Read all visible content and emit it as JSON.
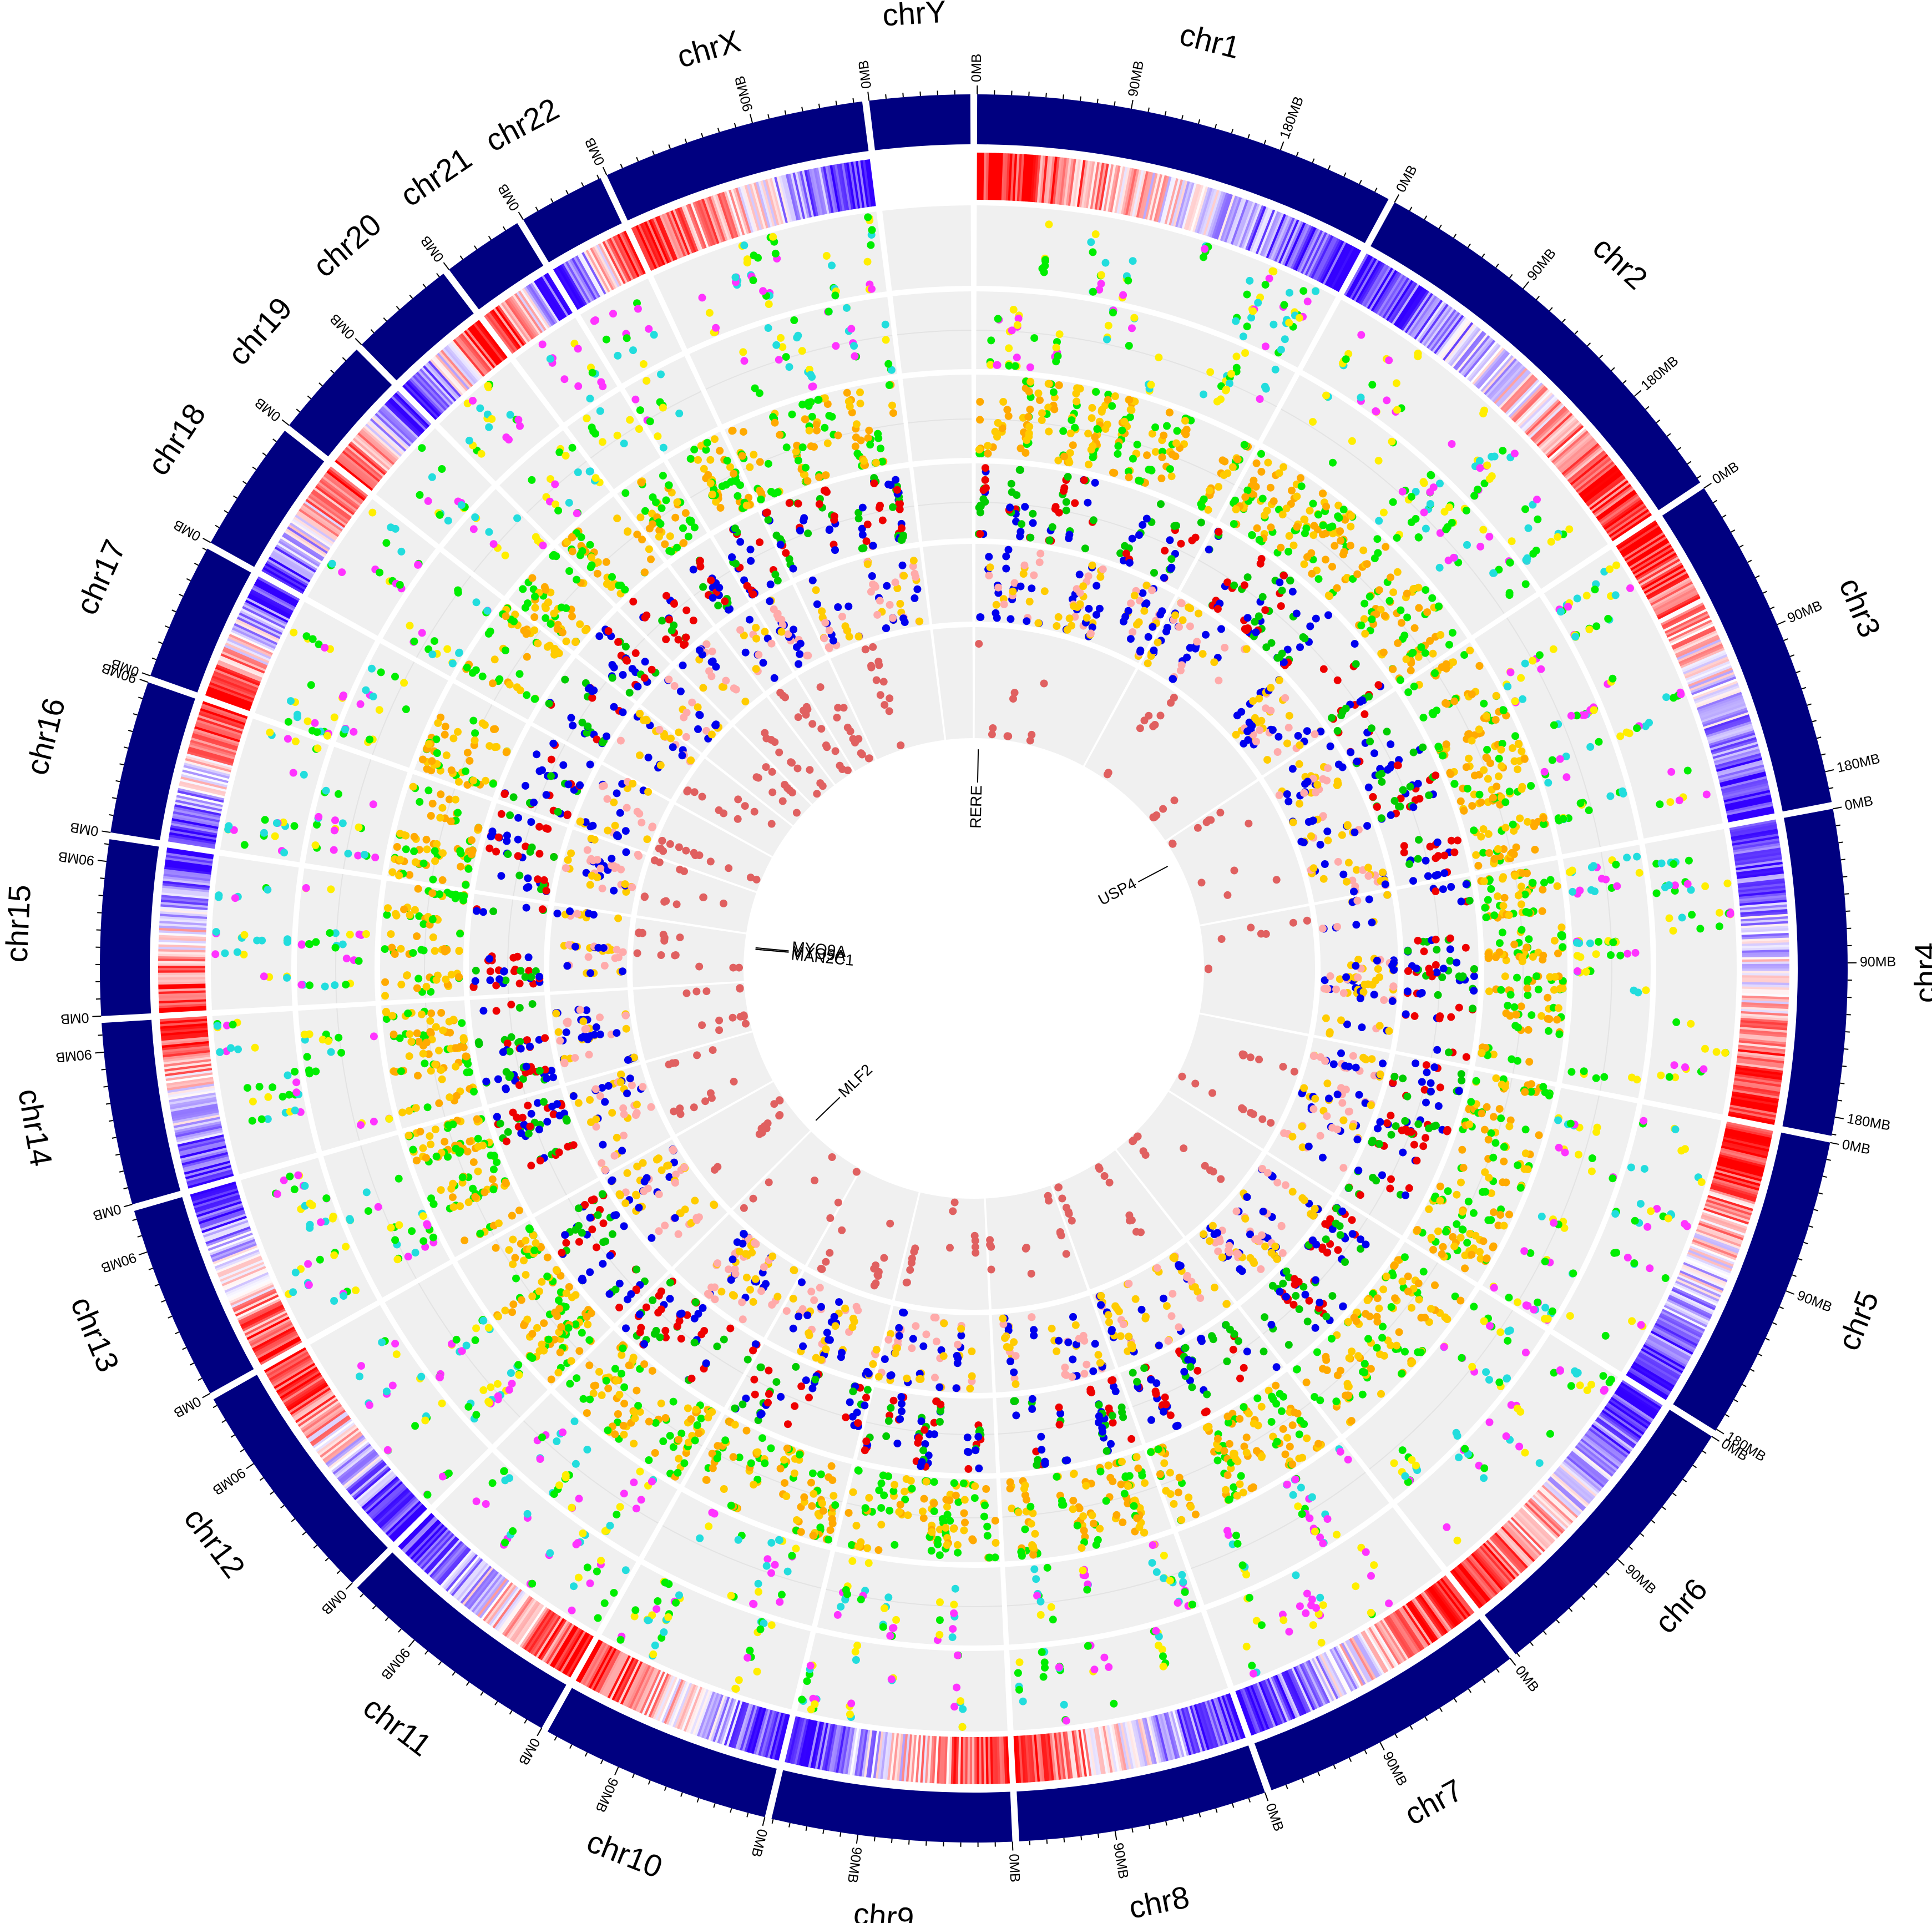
{
  "chart_data": {
    "type": "circos",
    "genome": "hg19",
    "chromosomes": [
      {
        "name": "chr1",
        "size_mb": 249
      },
      {
        "name": "chr2",
        "size_mb": 243
      },
      {
        "name": "chr3",
        "size_mb": 198
      },
      {
        "name": "chr4",
        "size_mb": 191
      },
      {
        "name": "chr5",
        "size_mb": 181
      },
      {
        "name": "chr6",
        "size_mb": 171
      },
      {
        "name": "chr7",
        "size_mb": 159
      },
      {
        "name": "chr8",
        "size_mb": 146
      },
      {
        "name": "chr9",
        "size_mb": 141
      },
      {
        "name": "chr10",
        "size_mb": 136
      },
      {
        "name": "chr11",
        "size_mb": 135
      },
      {
        "name": "chr12",
        "size_mb": 134
      },
      {
        "name": "chr13",
        "size_mb": 115
      },
      {
        "name": "chr14",
        "size_mb": 107
      },
      {
        "name": "chr15",
        "size_mb": 103
      },
      {
        "name": "chr16",
        "size_mb": 90
      },
      {
        "name": "chr17",
        "size_mb": 81
      },
      {
        "name": "chr18",
        "size_mb": 78
      },
      {
        "name": "chr19",
        "size_mb": 59
      },
      {
        "name": "chr20",
        "size_mb": 63
      },
      {
        "name": "chr21",
        "size_mb": 48
      },
      {
        "name": "chr22",
        "size_mb": 51
      },
      {
        "name": "chrX",
        "size_mb": 155
      },
      {
        "name": "chrY",
        "size_mb": 59
      }
    ],
    "tick_interval_mb": 90,
    "tick_labels": [
      "0MB",
      "90MB",
      "180MB"
    ],
    "gene_labels": [
      {
        "name": "RERE",
        "chr": "chr1",
        "pos_mb": 8.5
      },
      {
        "name": "USP4",
        "chr": "chr3",
        "pos_mb": 49.3
      },
      {
        "name": "MLF2",
        "chr": "chr12",
        "pos_mb": 6.9
      },
      {
        "name": "MAN2C1",
        "chr": "chr15",
        "pos_mb": 75.6
      },
      {
        "name": "MYO9A",
        "chr": "chr15",
        "pos_mb": 72.1
      },
      {
        "name": "MYO9A",
        "chr": "chr15",
        "pos_mb": 72.3
      }
    ],
    "tracks": [
      {
        "name": "density-heatmap",
        "type": "heatmap",
        "colors": [
          "#3300ff",
          "#ffffff",
          "#ff0000"
        ]
      },
      {
        "name": "track-1",
        "type": "scatter",
        "colors": [
          "#00ee00",
          "#ffee00",
          "#ff33ff",
          "#22dddd"
        ]
      },
      {
        "name": "track-2",
        "type": "scatter",
        "colors": [
          "#00ee00",
          "#ffee00",
          "#ff33ff",
          "#22dddd"
        ]
      },
      {
        "name": "track-3",
        "type": "scatter",
        "colors": [
          "#ffcc00",
          "#ffaa00",
          "#00ee00"
        ]
      },
      {
        "name": "track-4",
        "type": "scatter",
        "colors": [
          "#0000ee",
          "#ee0000",
          "#00cc00"
        ]
      },
      {
        "name": "track-5",
        "type": "scatter",
        "colors": [
          "#0000ee",
          "#ffcc00",
          "#ffaaaa"
        ]
      },
      {
        "name": "track-6",
        "type": "scatter",
        "colors": [
          "#e06060"
        ]
      }
    ],
    "ideogram_color": "#000080",
    "track_background": "#f0f0f0"
  }
}
